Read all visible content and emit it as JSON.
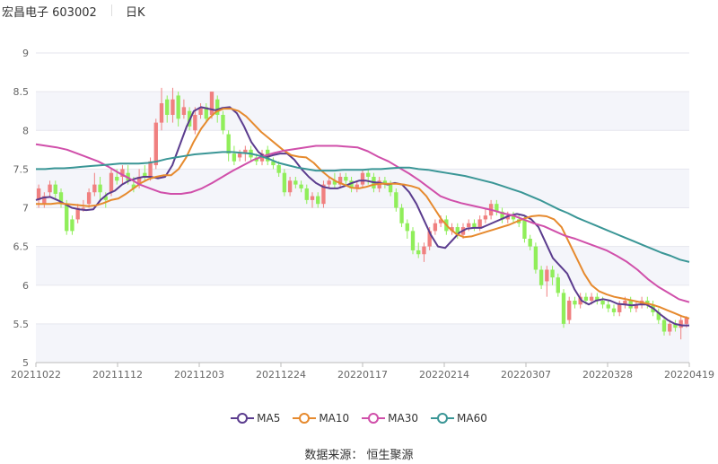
{
  "header": {
    "title": "宏昌电子 603002",
    "period": "日K"
  },
  "source_text": "数据来源：  恒生聚源",
  "colors": {
    "up": "#f08080",
    "down": "#90ee5a",
    "grid_band": "#f4f5fa"
  },
  "chart_data": {
    "type": "candlestick",
    "ylim": [
      5,
      9
    ],
    "yticks": [
      "5",
      "5.5",
      "6",
      "6.5",
      "7",
      "7.5",
      "8",
      "8.5",
      "9"
    ],
    "xtick_labels": [
      "20211022",
      "20211112",
      "20211203",
      "20211224",
      "20220117",
      "20220214",
      "20220307",
      "20220328",
      "20220419"
    ],
    "legend_position": "bottom",
    "series": [
      {
        "name": "MA5",
        "color": "#5b3c8e",
        "values": [
          7.1,
          7.13,
          7.14,
          7.1,
          7.05,
          7.0,
          6.98,
          6.97,
          6.98,
          7.1,
          7.18,
          7.22,
          7.3,
          7.35,
          7.38,
          7.4,
          7.4,
          7.38,
          7.4,
          7.55,
          7.8,
          8.05,
          8.25,
          8.3,
          8.28,
          8.26,
          8.29,
          8.3,
          8.22,
          8.05,
          7.85,
          7.72,
          7.65,
          7.68,
          7.7,
          7.7,
          7.62,
          7.5,
          7.4,
          7.32,
          7.27,
          7.25,
          7.25,
          7.28,
          7.32,
          7.35,
          7.35,
          7.33,
          7.32,
          7.3,
          7.32,
          7.3,
          7.2,
          7.05,
          6.85,
          6.65,
          6.5,
          6.48,
          6.58,
          6.68,
          6.73,
          6.74,
          6.74,
          6.78,
          6.82,
          6.86,
          6.9,
          6.92,
          6.9,
          6.85,
          6.75,
          6.55,
          6.35,
          6.25,
          6.15,
          5.95,
          5.8,
          5.75,
          5.8,
          5.82,
          5.8,
          5.76,
          5.75,
          5.74,
          5.75,
          5.75,
          5.7,
          5.62,
          5.55,
          5.5,
          5.48,
          5.48
        ]
      },
      {
        "name": "MA10",
        "color": "#e68a2e",
        "values": [
          7.05,
          7.05,
          7.05,
          7.06,
          7.05,
          7.04,
          7.03,
          7.02,
          7.03,
          7.06,
          7.1,
          7.12,
          7.18,
          7.25,
          7.32,
          7.37,
          7.4,
          7.42,
          7.42,
          7.5,
          7.65,
          7.85,
          8.02,
          8.15,
          8.24,
          8.28,
          8.28,
          8.25,
          8.18,
          8.08,
          7.98,
          7.9,
          7.82,
          7.74,
          7.68,
          7.66,
          7.65,
          7.58,
          7.48,
          7.4,
          7.34,
          7.3,
          7.26,
          7.25,
          7.27,
          7.3,
          7.31,
          7.31,
          7.31,
          7.3,
          7.28,
          7.25,
          7.15,
          7.0,
          6.85,
          6.74,
          6.66,
          6.62,
          6.63,
          6.66,
          6.69,
          6.72,
          6.75,
          6.78,
          6.82,
          6.86,
          6.89,
          6.9,
          6.89,
          6.85,
          6.75,
          6.55,
          6.35,
          6.15,
          6.0,
          5.92,
          5.88,
          5.85,
          5.83,
          5.81,
          5.79,
          5.77,
          5.75,
          5.72,
          5.68,
          5.64,
          5.6,
          5.57
        ]
      },
      {
        "name": "MA30",
        "color": "#d04faa",
        "values": [
          7.82,
          7.8,
          7.78,
          7.75,
          7.7,
          7.65,
          7.6,
          7.53,
          7.45,
          7.38,
          7.3,
          7.25,
          7.2,
          7.18,
          7.18,
          7.2,
          7.25,
          7.32,
          7.4,
          7.48,
          7.55,
          7.62,
          7.67,
          7.71,
          7.74,
          7.76,
          7.78,
          7.8,
          7.8,
          7.8,
          7.79,
          7.78,
          7.73,
          7.66,
          7.6,
          7.52,
          7.44,
          7.35,
          7.25,
          7.15,
          7.1,
          7.06,
          7.03,
          7.0,
          6.97,
          6.93,
          6.9,
          6.85,
          6.8,
          6.76,
          6.7,
          6.64,
          6.6,
          6.55,
          6.5,
          6.45,
          6.38,
          6.3,
          6.2,
          6.08,
          5.98,
          5.9,
          5.82,
          5.78
        ]
      },
      {
        "name": "MA60",
        "color": "#3a9696",
        "values": [
          7.5,
          7.5,
          7.51,
          7.51,
          7.52,
          7.53,
          7.54,
          7.55,
          7.56,
          7.57,
          7.57,
          7.57,
          7.58,
          7.6,
          7.63,
          7.65,
          7.67,
          7.69,
          7.7,
          7.71,
          7.72,
          7.72,
          7.71,
          7.7,
          7.67,
          7.63,
          7.58,
          7.55,
          7.52,
          7.5,
          7.48,
          7.48,
          7.48,
          7.49,
          7.49,
          7.49,
          7.5,
          7.5,
          7.51,
          7.52,
          7.52,
          7.5,
          7.49,
          7.47,
          7.45,
          7.43,
          7.41,
          7.38,
          7.35,
          7.32,
          7.28,
          7.24,
          7.2,
          7.15,
          7.1,
          7.04,
          6.98,
          6.93,
          6.87,
          6.82,
          6.77,
          6.72,
          6.67,
          6.62,
          6.57,
          6.52,
          6.47,
          6.42,
          6.38,
          6.33,
          6.3
        ]
      }
    ],
    "candles": [
      [
        7.1,
        7.25,
        7.3,
        7.0
      ],
      [
        7.05,
        7.15,
        7.2,
        7.0
      ],
      [
        7.2,
        7.3,
        7.35,
        7.15
      ],
      [
        7.3,
        7.18,
        7.35,
        7.1
      ],
      [
        7.2,
        7.05,
        7.25,
        7.0
      ],
      [
        7.05,
        6.7,
        7.1,
        6.65
      ],
      [
        6.85,
        6.7,
        6.9,
        6.65
      ],
      [
        6.85,
        7.0,
        7.05,
        6.8
      ],
      [
        7.0,
        7.0,
        7.1,
        6.95
      ],
      [
        7.05,
        7.2,
        7.25,
        7.0
      ],
      [
        7.2,
        7.3,
        7.45,
        7.15
      ],
      [
        7.3,
        7.2,
        7.4,
        7.1
      ],
      [
        7.15,
        7.1,
        7.2,
        7.0
      ],
      [
        7.2,
        7.45,
        7.5,
        7.15
      ],
      [
        7.4,
        7.35,
        7.5,
        7.3
      ],
      [
        7.4,
        7.5,
        7.55,
        7.3
      ],
      [
        7.45,
        7.35,
        7.55,
        7.3
      ],
      [
        7.3,
        7.25,
        7.4,
        7.2
      ],
      [
        7.3,
        7.4,
        7.5,
        7.25
      ],
      [
        7.45,
        7.4,
        7.55,
        7.35
      ],
      [
        7.4,
        7.6,
        7.65,
        7.35
      ],
      [
        7.55,
        8.1,
        8.15,
        7.5
      ],
      [
        8.1,
        8.35,
        8.55,
        8.0
      ],
      [
        8.4,
        8.2,
        8.45,
        8.1
      ],
      [
        8.2,
        8.4,
        8.55,
        8.1
      ],
      [
        8.45,
        8.15,
        8.5,
        8.05
      ],
      [
        8.2,
        8.3,
        8.4,
        8.15
      ],
      [
        8.25,
        8.05,
        8.3,
        8.0
      ],
      [
        8.0,
        8.2,
        8.3,
        7.95
      ],
      [
        8.2,
        8.3,
        8.35,
        8.15
      ],
      [
        8.3,
        8.15,
        8.35,
        8.1
      ],
      [
        8.2,
        8.5,
        8.5,
        8.15
      ],
      [
        8.4,
        8.2,
        8.45,
        8.1
      ],
      [
        8.2,
        8.0,
        8.25,
        7.95
      ],
      [
        7.95,
        7.7,
        8.0,
        7.6
      ],
      [
        7.7,
        7.6,
        7.8,
        7.55
      ],
      [
        7.65,
        7.7,
        7.75,
        7.6
      ],
      [
        7.7,
        7.75,
        7.8,
        7.6
      ],
      [
        7.75,
        7.65,
        7.8,
        7.6
      ],
      [
        7.65,
        7.6,
        7.7,
        7.55
      ],
      [
        7.6,
        7.7,
        7.75,
        7.55
      ],
      [
        7.75,
        7.6,
        7.8,
        7.55
      ],
      [
        7.6,
        7.55,
        7.65,
        7.5
      ],
      [
        7.55,
        7.45,
        7.6,
        7.4
      ],
      [
        7.45,
        7.2,
        7.5,
        7.15
      ]
    ],
    "candles_b": [
      [
        7.2,
        7.35,
        7.4,
        7.15
      ],
      [
        7.35,
        7.3,
        7.4,
        7.25
      ],
      [
        7.3,
        7.25,
        7.35,
        7.2
      ],
      [
        7.25,
        7.1,
        7.3,
        7.05
      ],
      [
        7.1,
        7.15,
        7.2,
        7.0
      ],
      [
        7.15,
        7.05,
        7.2,
        7.0
      ],
      [
        7.05,
        7.3,
        7.35,
        7.0
      ],
      [
        7.3,
        7.35,
        7.4,
        7.25
      ],
      [
        7.35,
        7.3,
        7.45,
        7.25
      ],
      [
        7.3,
        7.4,
        7.45,
        7.25
      ],
      [
        7.4,
        7.35,
        7.45,
        7.3
      ],
      [
        7.35,
        7.25,
        7.4,
        7.2
      ],
      [
        7.25,
        7.3,
        7.35,
        7.2
      ],
      [
        7.3,
        7.45,
        7.5,
        7.25
      ],
      [
        7.45,
        7.4,
        7.5,
        7.3
      ],
      [
        7.4,
        7.25,
        7.45,
        7.2
      ],
      [
        7.25,
        7.35,
        7.4,
        7.2
      ],
      [
        7.35,
        7.3,
        7.4,
        7.25
      ],
      [
        7.3,
        7.2,
        7.35,
        7.15
      ],
      [
        7.2,
        7.0,
        7.25,
        6.95
      ],
      [
        7.0,
        6.8,
        7.05,
        6.75
      ],
      [
        6.8,
        6.7,
        6.85,
        6.6
      ],
      [
        6.7,
        6.45,
        6.75,
        6.4
      ],
      [
        6.45,
        6.4,
        6.55,
        6.35
      ],
      [
        6.4,
        6.5,
        6.55,
        6.3
      ],
      [
        6.5,
        6.7,
        6.75,
        6.45
      ],
      [
        6.7,
        6.8,
        6.85,
        6.65
      ],
      [
        6.8,
        6.85,
        6.9,
        6.75
      ],
      [
        6.85,
        6.7,
        6.9,
        6.65
      ],
      [
        6.7,
        6.75,
        6.8,
        6.65
      ],
      [
        6.75,
        6.65,
        6.8,
        6.6
      ],
      [
        6.65,
        6.75,
        6.8,
        6.6
      ],
      [
        6.75,
        6.8,
        6.85,
        6.7
      ],
      [
        6.8,
        6.75,
        6.85,
        6.7
      ],
      [
        6.75,
        6.85,
        6.9,
        6.7
      ],
      [
        6.85,
        6.9,
        7.0,
        6.8
      ],
      [
        6.9,
        7.05,
        7.1,
        6.85
      ],
      [
        7.05,
        6.95,
        7.1,
        6.9
      ],
      [
        6.95,
        6.85,
        7.0,
        6.8
      ],
      [
        6.85,
        6.9,
        6.95,
        6.8
      ],
      [
        6.9,
        6.85,
        6.95,
        6.8
      ],
      [
        6.85,
        6.8,
        6.9,
        6.75
      ]
    ],
    "candles_c": [
      [
        6.85,
        6.6,
        6.9,
        6.55
      ],
      [
        6.6,
        6.5,
        6.65,
        6.45
      ],
      [
        6.5,
        6.2,
        6.55,
        6.15
      ],
      [
        6.2,
        6.0,
        6.25,
        5.95
      ],
      [
        6.05,
        6.2,
        6.25,
        5.85
      ],
      [
        6.2,
        6.1,
        6.25,
        6.0
      ],
      [
        6.1,
        5.9,
        6.15,
        5.85
      ],
      [
        5.9,
        5.5,
        5.95,
        5.45
      ],
      [
        5.55,
        5.8,
        5.85,
        5.5
      ],
      [
        5.8,
        5.75,
        5.85,
        5.7
      ],
      [
        5.75,
        5.85,
        5.9,
        5.7
      ],
      [
        5.85,
        5.8,
        5.9,
        5.75
      ],
      [
        5.8,
        5.85,
        5.9,
        5.75
      ],
      [
        5.85,
        5.8,
        5.9,
        5.75
      ],
      [
        5.8,
        5.75,
        5.85,
        5.7
      ],
      [
        5.75,
        5.7,
        5.8,
        5.65
      ],
      [
        5.7,
        5.65,
        5.75,
        5.6
      ],
      [
        5.65,
        5.75,
        5.8,
        5.6
      ],
      [
        5.75,
        5.8,
        5.85,
        5.7
      ],
      [
        5.8,
        5.7,
        5.85,
        5.65
      ],
      [
        5.7,
        5.75,
        5.8,
        5.65
      ],
      [
        5.75,
        5.8,
        5.85,
        5.7
      ],
      [
        5.8,
        5.75,
        5.85,
        5.7
      ],
      [
        5.75,
        5.65,
        5.8,
        5.6
      ],
      [
        5.65,
        5.55,
        5.7,
        5.5
      ],
      [
        5.55,
        5.4,
        5.6,
        5.35
      ],
      [
        5.4,
        5.5,
        5.55,
        5.35
      ],
      [
        5.5,
        5.45,
        5.55,
        5.4
      ],
      [
        5.45,
        5.55,
        5.6,
        5.3
      ],
      [
        5.5,
        5.58,
        5.6,
        5.45
      ]
    ]
  }
}
